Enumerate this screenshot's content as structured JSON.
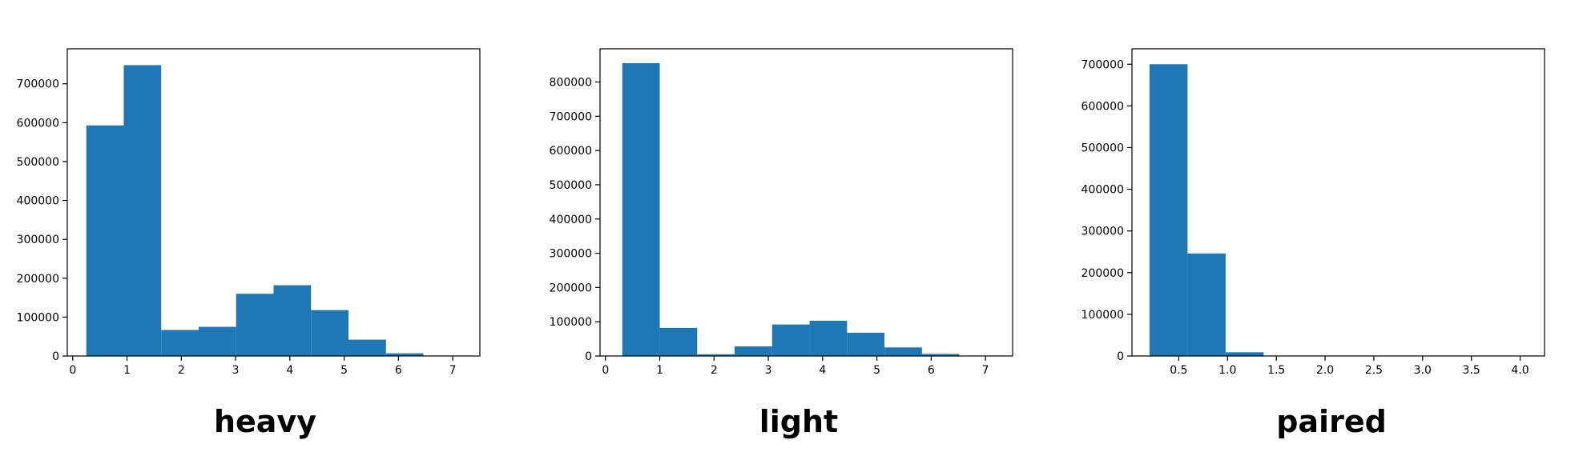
{
  "colors": {
    "bar": "#1f77b4",
    "axis": "#000000",
    "background": "#ffffff"
  },
  "chart_data": [
    {
      "type": "bar",
      "title": "heavy",
      "xlim": [
        -0.1,
        7.5
      ],
      "ylim": [
        0,
        790000
      ],
      "x_ticks": [
        0,
        1,
        2,
        3,
        4,
        5,
        6,
        7
      ],
      "x_tick_labels": [
        "0",
        "1",
        "2",
        "3",
        "4",
        "5",
        "6",
        "7"
      ],
      "y_ticks": [
        0,
        100000,
        200000,
        300000,
        400000,
        500000,
        600000,
        700000
      ],
      "y_tick_labels": [
        "0",
        "100000",
        "200000",
        "300000",
        "400000",
        "500000",
        "600000",
        "700000"
      ],
      "bin_edges": [
        0.25,
        0.94,
        1.63,
        2.32,
        3.01,
        3.7,
        4.39,
        5.08,
        5.77,
        6.46,
        7.15
      ],
      "values": [
        593000,
        748000,
        67000,
        75000,
        160000,
        182000,
        118000,
        42000,
        7000,
        1000
      ]
    },
    {
      "type": "bar",
      "title": "light",
      "xlim": [
        -0.1,
        7.5
      ],
      "ylim": [
        0,
        897000
      ],
      "x_ticks": [
        0,
        1,
        2,
        3,
        4,
        5,
        6,
        7
      ],
      "x_tick_labels": [
        "0",
        "1",
        "2",
        "3",
        "4",
        "5",
        "6",
        "7"
      ],
      "y_ticks": [
        0,
        100000,
        200000,
        300000,
        400000,
        500000,
        600000,
        700000,
        800000
      ],
      "y_tick_labels": [
        "0",
        "100000",
        "200000",
        "300000",
        "400000",
        "500000",
        "600000",
        "700000",
        "800000"
      ],
      "bin_edges": [
        0.31,
        1.0,
        1.69,
        2.38,
        3.07,
        3.76,
        4.45,
        5.14,
        5.83,
        6.52,
        7.21
      ],
      "values": [
        855000,
        82000,
        5000,
        28000,
        92000,
        103000,
        68000,
        25000,
        6000,
        1000
      ]
    },
    {
      "type": "bar",
      "title": "paired",
      "xlim": [
        0.02,
        4.25
      ],
      "ylim": [
        0,
        737000
      ],
      "x_ticks": [
        0.5,
        1.0,
        1.5,
        2.0,
        2.5,
        3.0,
        3.5,
        4.0
      ],
      "x_tick_labels": [
        "0.5",
        "1.0",
        "1.5",
        "2.0",
        "2.5",
        "3.0",
        "3.5",
        "4.0"
      ],
      "y_ticks": [
        0,
        100000,
        200000,
        300000,
        400000,
        500000,
        600000,
        700000
      ],
      "y_tick_labels": [
        "0",
        "100000",
        "200000",
        "300000",
        "400000",
        "500000",
        "600000",
        "700000"
      ],
      "bin_edges": [
        0.2,
        0.59,
        0.98,
        1.37,
        1.76,
        2.15,
        2.54,
        2.93,
        3.32,
        3.71,
        4.1
      ],
      "values": [
        700000,
        246000,
        9000,
        1000,
        300,
        100,
        50,
        20,
        10,
        5
      ]
    }
  ]
}
